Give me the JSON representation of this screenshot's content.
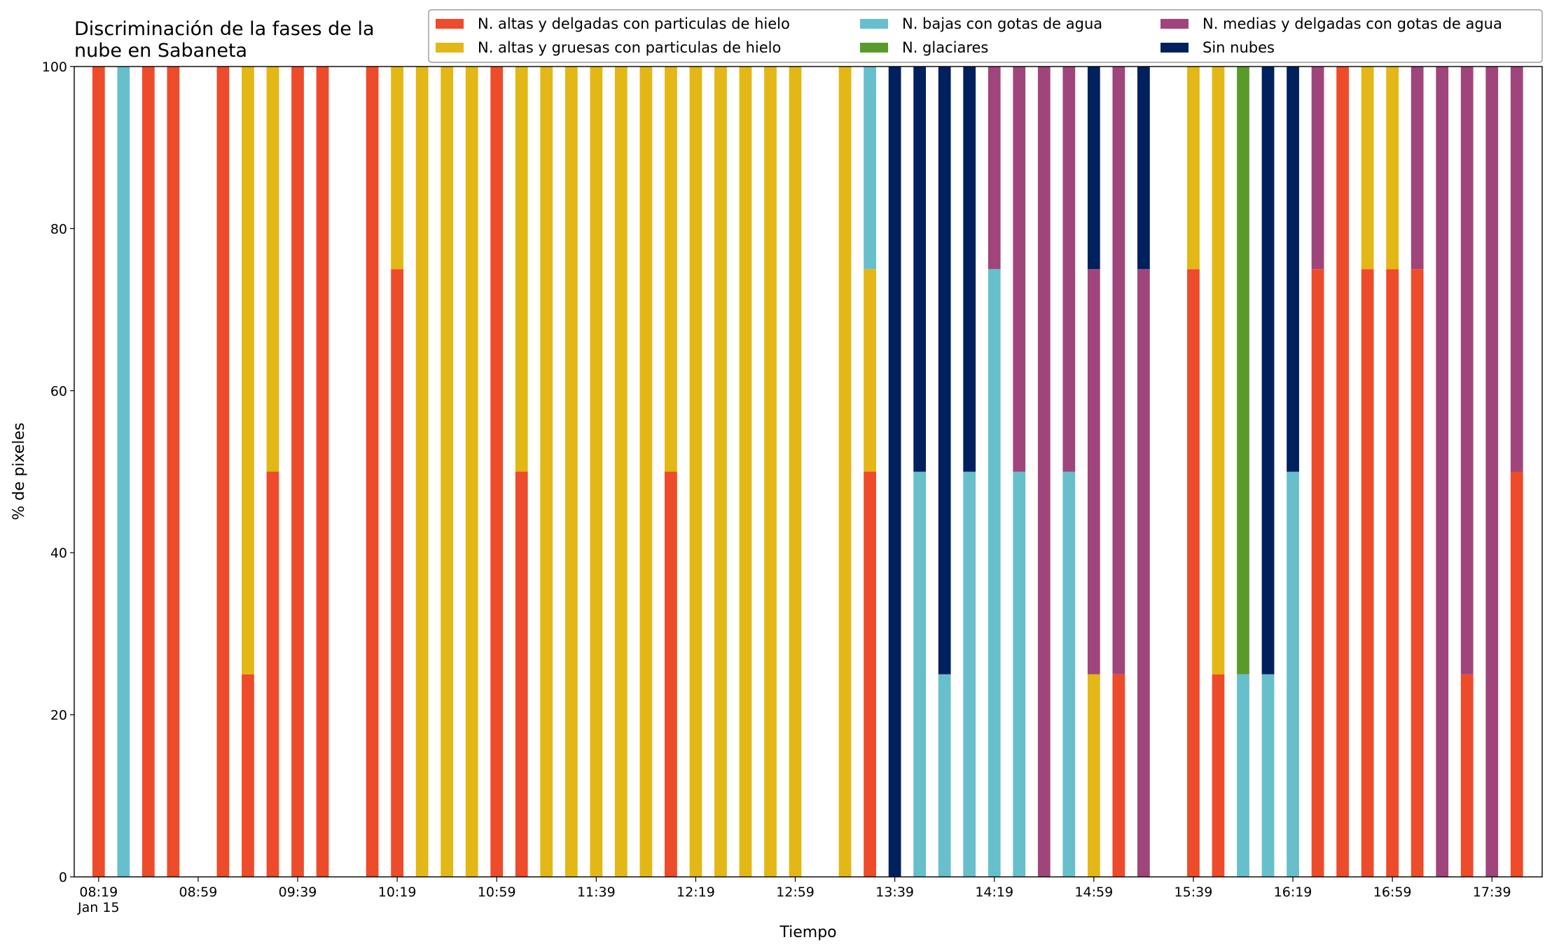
{
  "chart_data": {
    "type": "stacked_bar",
    "title": "Discriminación de la fases de la\nnube en Sabaneta",
    "xlabel": "Tiempo",
    "ylabel": "% de pixeles",
    "categories": [
      "08:19",
      "08:29",
      "08:39",
      "08:49",
      "08:59",
      "09:09",
      "09:19",
      "09:29",
      "09:39",
      "09:49",
      "09:59",
      "10:09",
      "10:19",
      "10:29",
      "10:39",
      "10:49",
      "10:59",
      "11:09",
      "11:19",
      "11:29",
      "11:39",
      "11:49",
      "11:59",
      "12:09",
      "12:19",
      "12:29",
      "12:39",
      "12:49",
      "12:59",
      "13:09",
      "13:19",
      "13:29",
      "13:39",
      "13:49",
      "13:59",
      "14:09",
      "14:19",
      "14:29",
      "14:39",
      "14:49",
      "14:59",
      "15:09",
      "15:19",
      "15:29",
      "15:39",
      "15:49",
      "15:59",
      "16:09",
      "16:19",
      "16:29",
      "16:39",
      "16:49",
      "16:59",
      "17:09",
      "17:19",
      "17:29",
      "17:39",
      "17:49"
    ],
    "xticks": [
      {
        "value": "08:19",
        "label": "08:19\nJan 15"
      },
      "08:59",
      "09:39",
      "10:19",
      "10:59",
      "11:39",
      "12:19",
      "12:59",
      "13:39",
      "14:19",
      "14:59",
      "15:39",
      "16:19",
      "16:59",
      "17:39"
    ],
    "ylim": [
      0,
      100
    ],
    "yticks": [
      0,
      20,
      40,
      60,
      80,
      100
    ],
    "series": [
      {
        "name": "N. altas y delgadas con particulas de hielo",
        "color": "#ee4b2b",
        "values": [
          100,
          0,
          100,
          100,
          0,
          100,
          25,
          50,
          100,
          100,
          0,
          100,
          75,
          0,
          0,
          0,
          100,
          50,
          0,
          0,
          0,
          0,
          0,
          50,
          0,
          0,
          0,
          0,
          0,
          0,
          0,
          50,
          0,
          0,
          0,
          0,
          0,
          0,
          0,
          0,
          0,
          25,
          0,
          0,
          75,
          25,
          0,
          0,
          0,
          75,
          100,
          75,
          75,
          75,
          0,
          25,
          0,
          50
        ]
      },
      {
        "name": "N. altas y gruesas con particulas de hielo",
        "color": "#e3b716",
        "values": [
          0,
          0,
          0,
          0,
          0,
          0,
          75,
          50,
          0,
          0,
          0,
          0,
          25,
          100,
          100,
          100,
          0,
          50,
          100,
          100,
          100,
          100,
          100,
          50,
          100,
          100,
          100,
          100,
          100,
          0,
          100,
          25,
          0,
          0,
          0,
          0,
          0,
          0,
          0,
          0,
          25,
          0,
          0,
          0,
          25,
          75,
          0,
          0,
          0,
          0,
          0,
          25,
          25,
          0,
          0,
          0,
          0,
          0
        ]
      },
      {
        "name": "N. bajas con gotas de agua",
        "color": "#67bfcb",
        "values": [
          0,
          100,
          0,
          0,
          0,
          0,
          0,
          0,
          0,
          0,
          0,
          0,
          0,
          0,
          0,
          0,
          0,
          0,
          0,
          0,
          0,
          0,
          0,
          0,
          0,
          0,
          0,
          0,
          0,
          0,
          0,
          25,
          0,
          50,
          25,
          50,
          75,
          50,
          0,
          50,
          0,
          0,
          0,
          0,
          0,
          0,
          25,
          25,
          50,
          0,
          0,
          0,
          0,
          0,
          0,
          0,
          0,
          0
        ]
      },
      {
        "name": "N. glaciares",
        "color": "#5a9a2a",
        "values": [
          0,
          0,
          0,
          0,
          0,
          0,
          0,
          0,
          0,
          0,
          0,
          0,
          0,
          0,
          0,
          0,
          0,
          0,
          0,
          0,
          0,
          0,
          0,
          0,
          0,
          0,
          0,
          0,
          0,
          0,
          0,
          0,
          0,
          0,
          0,
          0,
          0,
          0,
          0,
          0,
          0,
          0,
          0,
          0,
          0,
          0,
          75,
          0,
          0,
          0,
          0,
          0,
          0,
          0,
          0,
          0,
          0,
          0
        ]
      },
      {
        "name": "N. medias y delgadas con gotas de agua",
        "color": "#a0457b",
        "values": [
          0,
          0,
          0,
          0,
          0,
          0,
          0,
          0,
          0,
          0,
          0,
          0,
          0,
          0,
          0,
          0,
          0,
          0,
          0,
          0,
          0,
          0,
          0,
          0,
          0,
          0,
          0,
          0,
          0,
          0,
          0,
          0,
          0,
          0,
          0,
          0,
          25,
          50,
          100,
          50,
          50,
          75,
          75,
          0,
          0,
          0,
          0,
          0,
          0,
          25,
          0,
          0,
          0,
          25,
          100,
          75,
          100,
          50
        ]
      },
      {
        "name": "Sin nubes",
        "color": "#00205e",
        "values": [
          0,
          0,
          0,
          0,
          0,
          0,
          0,
          0,
          0,
          0,
          0,
          0,
          0,
          0,
          0,
          0,
          0,
          0,
          0,
          0,
          0,
          0,
          0,
          0,
          0,
          0,
          0,
          0,
          0,
          0,
          0,
          0,
          100,
          50,
          75,
          50,
          0,
          0,
          0,
          0,
          25,
          0,
          25,
          0,
          0,
          0,
          0,
          75,
          50,
          0,
          0,
          0,
          0,
          0,
          0,
          0,
          0,
          0
        ]
      }
    ]
  }
}
